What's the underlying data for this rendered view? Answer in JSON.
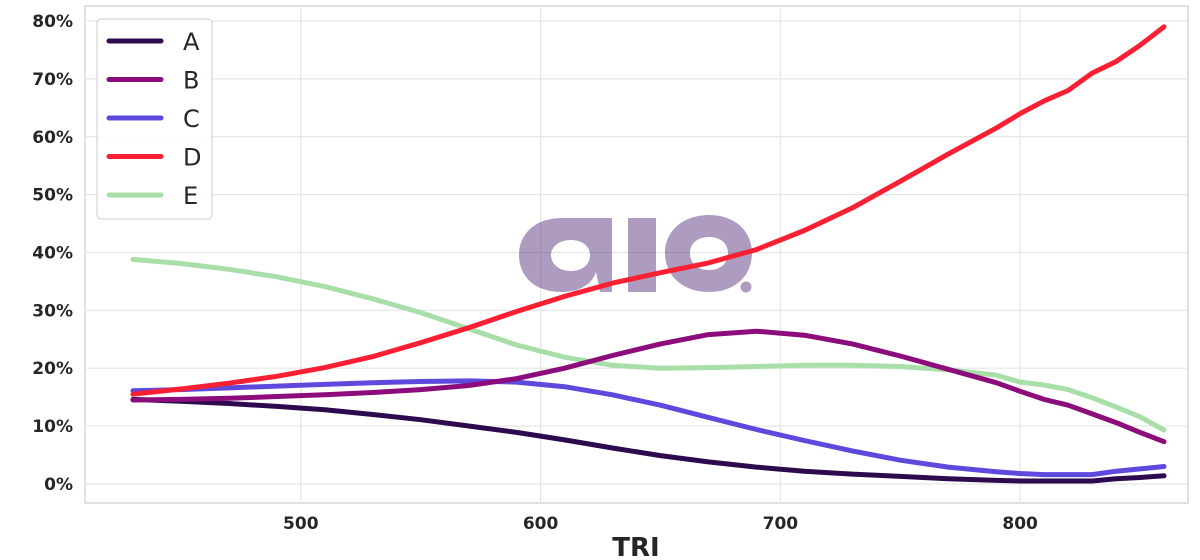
{
  "chart_data": {
    "type": "line",
    "xlabel": "TRI",
    "ylabel": "",
    "xlim": [
      410,
      870
    ],
    "ylim": [
      -3.3,
      82.6
    ],
    "x_ticks": [
      500,
      600,
      700,
      800
    ],
    "x_tick_labels": [
      "500",
      "600",
      "700",
      "800"
    ],
    "y_ticks": [
      0,
      10,
      20,
      30,
      40,
      50,
      60,
      70,
      80
    ],
    "y_tick_labels": [
      "0%",
      "10%",
      "20%",
      "30%",
      "40%",
      "50%",
      "60%",
      "70%",
      "80%"
    ],
    "grid": true,
    "legend_position": "top-left",
    "watermark": "aio.",
    "x": [
      430,
      450,
      470,
      490,
      510,
      530,
      550,
      570,
      590,
      610,
      630,
      650,
      670,
      690,
      710,
      730,
      750,
      770,
      790,
      800,
      810,
      820,
      830,
      840,
      850,
      860
    ],
    "series": [
      {
        "name": "A",
        "color": "#2d0a4e",
        "values": [
          14.6,
          14.3,
          13.9,
          13.4,
          12.8,
          12.0,
          11.1,
          10.0,
          8.9,
          7.6,
          6.2,
          4.9,
          3.8,
          2.9,
          2.2,
          1.7,
          1.3,
          0.9,
          0.6,
          0.5,
          0.5,
          0.5,
          0.5,
          0.9,
          1.1,
          1.4
        ]
      },
      {
        "name": "B",
        "color": "#8b0c7a",
        "values": [
          14.5,
          14.6,
          14.8,
          15.1,
          15.4,
          15.8,
          16.3,
          17.0,
          18.2,
          20.0,
          22.2,
          24.2,
          25.8,
          26.4,
          25.7,
          24.2,
          22.1,
          19.8,
          17.5,
          16.0,
          14.6,
          13.6,
          12.1,
          10.6,
          8.9,
          7.3
        ]
      },
      {
        "name": "C",
        "color": "#5e49dd",
        "values": [
          16.1,
          16.3,
          16.6,
          16.9,
          17.2,
          17.5,
          17.7,
          17.8,
          17.6,
          16.8,
          15.4,
          13.6,
          11.5,
          9.4,
          7.5,
          5.7,
          4.1,
          2.9,
          2.1,
          1.8,
          1.6,
          1.6,
          1.6,
          2.2,
          2.6,
          3.0
        ]
      },
      {
        "name": "D",
        "color": "#fb1f33",
        "values": [
          15.5,
          16.4,
          17.4,
          18.6,
          20.1,
          22.0,
          24.4,
          27.0,
          29.8,
          32.4,
          34.7,
          36.5,
          38.2,
          40.5,
          43.8,
          47.7,
          52.3,
          57.0,
          61.5,
          64.0,
          66.2,
          68.0,
          71.0,
          73.0,
          75.8,
          79.0
        ]
      },
      {
        "name": "E",
        "color": "#a8dea8",
        "values": [
          38.8,
          38.1,
          37.1,
          35.8,
          34.1,
          32.0,
          29.6,
          26.8,
          24.0,
          21.9,
          20.5,
          20.0,
          20.1,
          20.3,
          20.5,
          20.5,
          20.3,
          19.7,
          18.8,
          17.6,
          17.1,
          16.3,
          14.9,
          13.3,
          11.6,
          9.3
        ]
      }
    ]
  }
}
